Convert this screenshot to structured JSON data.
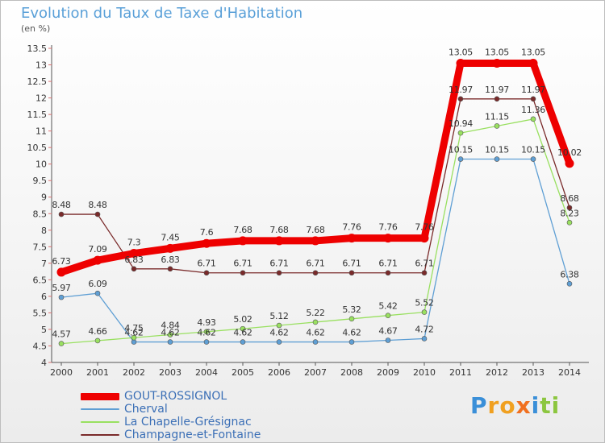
{
  "chart_data": {
    "type": "line",
    "title": "Evolution du Taux de Taxe d'Habitation",
    "unit": "(en %)",
    "x": [
      "2000",
      "2001",
      "2002",
      "2003",
      "2004",
      "2005",
      "2006",
      "2007",
      "2008",
      "2009",
      "2010",
      "2011",
      "2012",
      "2013",
      "2014"
    ],
    "y_ticks": [
      "4",
      "4.5",
      "5",
      "5.5",
      "6",
      "6.5",
      "7",
      "7.5",
      "8",
      "8.5",
      "9",
      "9.5",
      "10",
      "10.5",
      "11",
      "11.5",
      "12",
      "12.5",
      "13",
      "13.5"
    ],
    "ylim": [
      4,
      13.5
    ],
    "grid": false,
    "legend_position": "bottom-left",
    "series": [
      {
        "name": "GOUT-ROSSIGNOL",
        "color": "#ee0000",
        "values": [
          6.73,
          7.09,
          7.3,
          7.45,
          7.6,
          7.68,
          7.68,
          7.68,
          7.76,
          7.76,
          7.76,
          13.05,
          13.05,
          13.05,
          10.02
        ],
        "labels": [
          "6.73",
          "7.09",
          "7.3",
          "7.45",
          "7.6",
          "7.68",
          "7.68",
          "7.68",
          "7.76",
          "7.76",
          "7.76",
          "13.05",
          "13.05",
          "13.05",
          "10.02"
        ]
      },
      {
        "name": "Cherval",
        "color": "#5f9fd4",
        "values": [
          5.97,
          6.09,
          4.62,
          4.62,
          4.62,
          4.62,
          4.62,
          4.62,
          4.62,
          4.67,
          4.72,
          10.15,
          10.15,
          10.15,
          6.38
        ],
        "labels": [
          "5.97",
          "6.09",
          "4.62",
          "4.62",
          "4.62",
          "4.62",
          "4.62",
          "4.62",
          "4.62",
          "4.67",
          "4.72",
          "10.15",
          "10.15",
          "10.15",
          "6.38"
        ]
      },
      {
        "name": "La Chapelle-Grésignac",
        "color": "#99e060",
        "values": [
          4.57,
          4.66,
          4.75,
          4.84,
          4.93,
          5.02,
          5.12,
          5.22,
          5.32,
          5.42,
          5.52,
          10.94,
          11.15,
          11.36,
          8.23
        ],
        "labels": [
          "4.57",
          "4.66",
          "4.75",
          "4.84",
          "4.93",
          "5.02",
          "5.12",
          "5.22",
          "5.32",
          "5.42",
          "5.52",
          "10.94",
          "11.15",
          "11.36",
          "8.23"
        ]
      },
      {
        "name": "Champagne-et-Fontaine",
        "color": "#7a2a2a",
        "values": [
          8.48,
          8.48,
          6.83,
          6.83,
          6.71,
          6.71,
          6.71,
          6.71,
          6.71,
          6.71,
          6.71,
          11.97,
          11.97,
          11.97,
          8.68
        ],
        "labels": [
          "8.48",
          "8.48",
          "6.83",
          "6.83",
          "6.71",
          "6.71",
          "6.71",
          "6.71",
          "6.71",
          "6.71",
          "6.71",
          "11.97",
          "11.97",
          "11.97",
          "8.68"
        ]
      }
    ]
  },
  "logo": {
    "text": "Proxiti",
    "letters": [
      "P",
      "r",
      "o",
      "x",
      "i",
      "t",
      "i"
    ],
    "colors": [
      "#3a8fd8",
      "#f0a020",
      "#f0a020",
      "#f07020",
      "#3a8fd8",
      "#8cc63f",
      "#8cc63f"
    ]
  }
}
